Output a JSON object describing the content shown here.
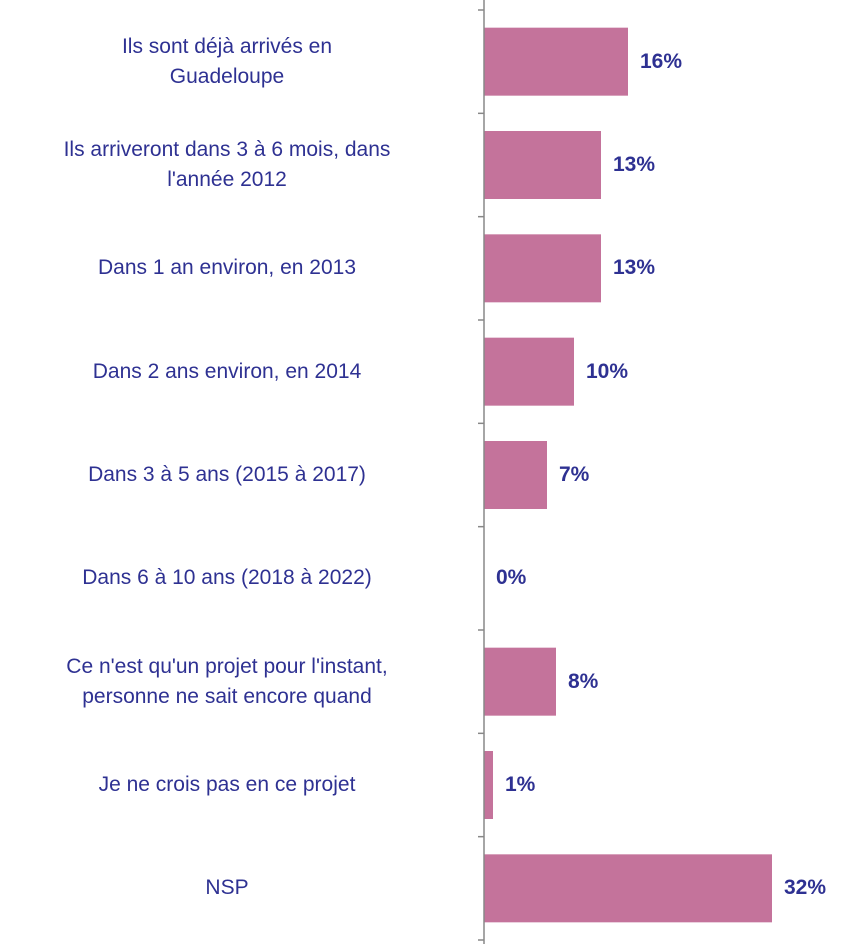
{
  "chart_data": {
    "type": "bar",
    "orientation": "horizontal",
    "categories": [
      "Ils sont déjà arrivés en\nGuadeloupe",
      "Ils arriveront dans 3 à 6 mois, dans\nl'année 2012",
      "Dans 1 an environ, en 2013",
      "Dans 2 ans environ, en 2014",
      "Dans 3 à 5 ans (2015 à 2017)",
      "Dans 6 à 10 ans (2018 à 2022)",
      "Ce n'est qu'un projet pour l'instant,\npersonne ne sait encore quand",
      "Je ne crois pas en ce projet",
      "NSP"
    ],
    "values": [
      16,
      13,
      13,
      10,
      7,
      0,
      8,
      1,
      32
    ],
    "value_labels": [
      "16%",
      "13%",
      "13%",
      "10%",
      "7%",
      "0%",
      "8%",
      "1%",
      "32%"
    ],
    "color": "#c4739b"
  }
}
